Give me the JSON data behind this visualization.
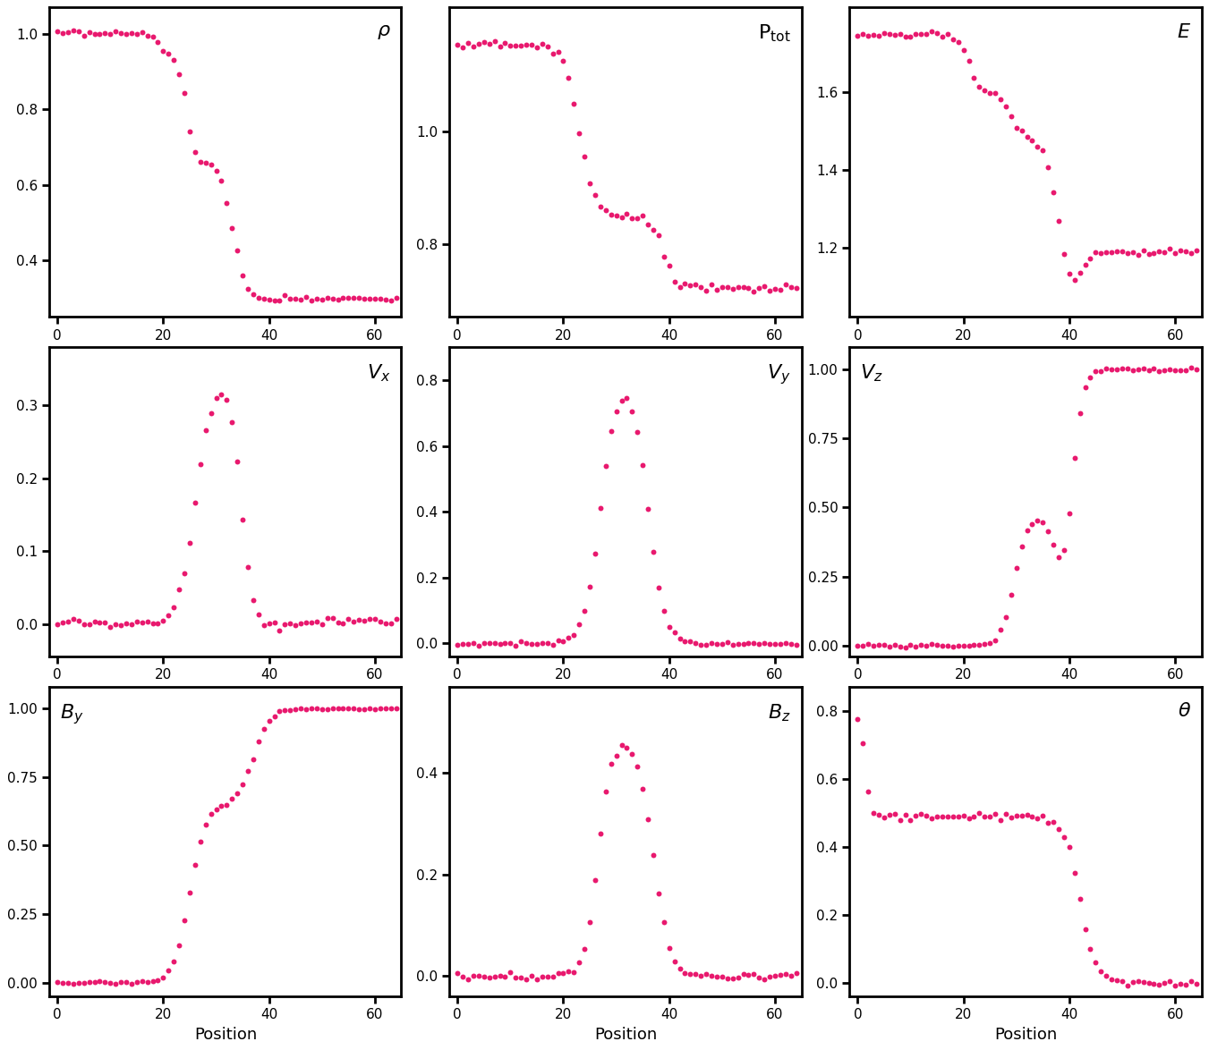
{
  "dot_color": "#e8196e",
  "dot_size": 18,
  "xlabel": "Position",
  "background": "#ffffff"
}
